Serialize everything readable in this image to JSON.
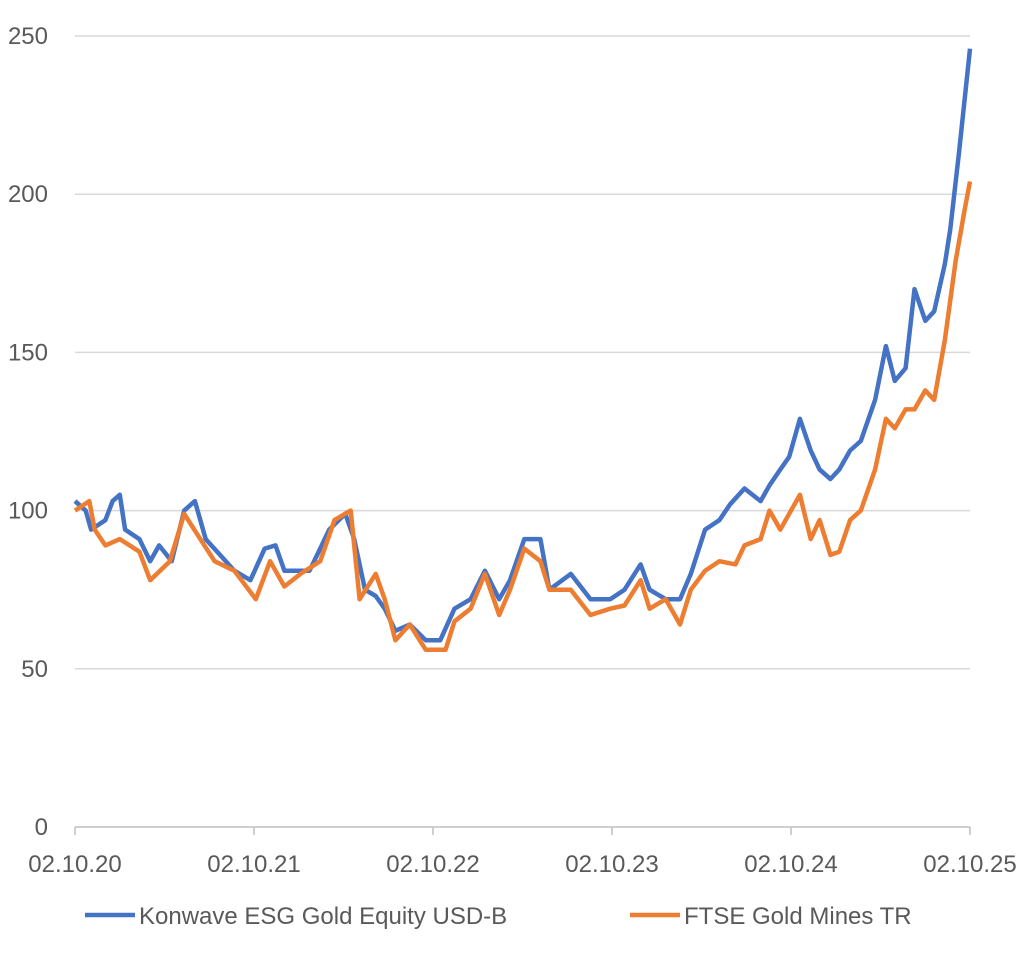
{
  "chart_data": {
    "type": "line",
    "title": "",
    "xlabel": "",
    "ylabel": "",
    "ylim": [
      0,
      250
    ],
    "yticks": [
      0,
      50,
      100,
      150,
      200,
      250
    ],
    "xlim_years_since_start": [
      0,
      5
    ],
    "xtick_labels": [
      "02.10.20",
      "02.10.21",
      "02.10.22",
      "02.10.23",
      "02.10.24",
      "02.10.25"
    ],
    "grid": "horizontal",
    "legend_position": "bottom",
    "x_unit": "years since 02.10.20",
    "series": [
      {
        "name": "Konwave ESG Gold Equity USD-B",
        "color": "#4472C4",
        "points": [
          [
            0,
            103
          ],
          [
            0.06,
            100
          ],
          [
            0.09,
            94
          ],
          [
            0.17,
            97
          ],
          [
            0.21,
            103
          ],
          [
            0.25,
            105
          ],
          [
            0.28,
            94
          ],
          [
            0.36,
            91
          ],
          [
            0.42,
            84
          ],
          [
            0.47,
            89
          ],
          [
            0.54,
            84
          ],
          [
            0.61,
            100
          ],
          [
            0.67,
            103
          ],
          [
            0.73,
            91
          ],
          [
            0.81,
            86
          ],
          [
            0.89,
            81
          ],
          [
            0.98,
            78
          ],
          [
            1.06,
            88
          ],
          [
            1.12,
            89
          ],
          [
            1.17,
            81
          ],
          [
            1.26,
            81
          ],
          [
            1.31,
            81
          ],
          [
            1.37,
            88
          ],
          [
            1.42,
            94
          ],
          [
            1.51,
            99
          ],
          [
            1.56,
            91
          ],
          [
            1.62,
            75
          ],
          [
            1.68,
            73
          ],
          [
            1.73,
            69
          ],
          [
            1.79,
            62
          ],
          [
            1.87,
            64
          ],
          [
            1.96,
            59
          ],
          [
            2.04,
            59
          ],
          [
            2.12,
            69
          ],
          [
            2.21,
            72
          ],
          [
            2.29,
            81
          ],
          [
            2.37,
            72
          ],
          [
            2.43,
            78
          ],
          [
            2.51,
            91
          ],
          [
            2.6,
            91
          ],
          [
            2.65,
            75
          ],
          [
            2.77,
            80
          ],
          [
            2.88,
            72
          ],
          [
            2.99,
            72
          ],
          [
            3.07,
            75
          ],
          [
            3.16,
            83
          ],
          [
            3.21,
            75
          ],
          [
            3.3,
            72
          ],
          [
            3.38,
            72
          ],
          [
            3.44,
            80
          ],
          [
            3.52,
            94
          ],
          [
            3.6,
            97
          ],
          [
            3.66,
            102
          ],
          [
            3.74,
            107
          ],
          [
            3.83,
            103
          ],
          [
            3.88,
            108
          ],
          [
            3.94,
            113
          ],
          [
            3.99,
            117
          ],
          [
            4.05,
            129
          ],
          [
            4.11,
            119
          ],
          [
            4.16,
            113
          ],
          [
            4.22,
            110
          ],
          [
            4.27,
            113
          ],
          [
            4.33,
            119
          ],
          [
            4.39,
            122
          ],
          [
            4.47,
            135
          ],
          [
            4.53,
            152
          ],
          [
            4.58,
            141
          ],
          [
            4.64,
            145
          ],
          [
            4.69,
            170
          ],
          [
            4.75,
            160
          ],
          [
            4.8,
            163
          ],
          [
            4.86,
            178
          ],
          [
            4.89,
            189
          ],
          [
            4.94,
            214
          ],
          [
            5.0,
            246
          ]
        ]
      },
      {
        "name": "FTSE Gold Mines TR",
        "color": "#ED7D31",
        "points": [
          [
            0,
            100
          ],
          [
            0.08,
            103
          ],
          [
            0.11,
            94
          ],
          [
            0.17,
            89
          ],
          [
            0.25,
            91
          ],
          [
            0.36,
            87
          ],
          [
            0.42,
            78
          ],
          [
            0.53,
            84
          ],
          [
            0.61,
            99
          ],
          [
            0.7,
            91
          ],
          [
            0.78,
            84
          ],
          [
            0.89,
            81
          ],
          [
            1.01,
            72
          ],
          [
            1.09,
            84
          ],
          [
            1.17,
            76
          ],
          [
            1.26,
            80
          ],
          [
            1.37,
            84
          ],
          [
            1.45,
            97
          ],
          [
            1.54,
            100
          ],
          [
            1.59,
            72
          ],
          [
            1.68,
            80
          ],
          [
            1.73,
            72
          ],
          [
            1.79,
            59
          ],
          [
            1.87,
            64
          ],
          [
            1.96,
            56
          ],
          [
            2.07,
            56
          ],
          [
            2.12,
            65
          ],
          [
            2.21,
            69
          ],
          [
            2.29,
            80
          ],
          [
            2.37,
            67
          ],
          [
            2.43,
            75
          ],
          [
            2.51,
            88
          ],
          [
            2.6,
            84
          ],
          [
            2.65,
            75
          ],
          [
            2.77,
            75
          ],
          [
            2.88,
            67
          ],
          [
            2.99,
            69
          ],
          [
            3.07,
            70
          ],
          [
            3.16,
            78
          ],
          [
            3.21,
            69
          ],
          [
            3.3,
            72
          ],
          [
            3.38,
            64
          ],
          [
            3.44,
            75
          ],
          [
            3.52,
            81
          ],
          [
            3.6,
            84
          ],
          [
            3.69,
            83
          ],
          [
            3.74,
            89
          ],
          [
            3.83,
            91
          ],
          [
            3.88,
            100
          ],
          [
            3.94,
            94
          ],
          [
            3.99,
            99
          ],
          [
            4.05,
            105
          ],
          [
            4.11,
            91
          ],
          [
            4.16,
            97
          ],
          [
            4.22,
            86
          ],
          [
            4.27,
            87
          ],
          [
            4.33,
            97
          ],
          [
            4.39,
            100
          ],
          [
            4.47,
            113
          ],
          [
            4.53,
            129
          ],
          [
            4.58,
            126
          ],
          [
            4.64,
            132
          ],
          [
            4.69,
            132
          ],
          [
            4.75,
            138
          ],
          [
            4.8,
            135
          ],
          [
            4.86,
            154
          ],
          [
            4.92,
            179
          ],
          [
            4.97,
            195
          ],
          [
            5.0,
            204
          ]
        ]
      }
    ]
  }
}
